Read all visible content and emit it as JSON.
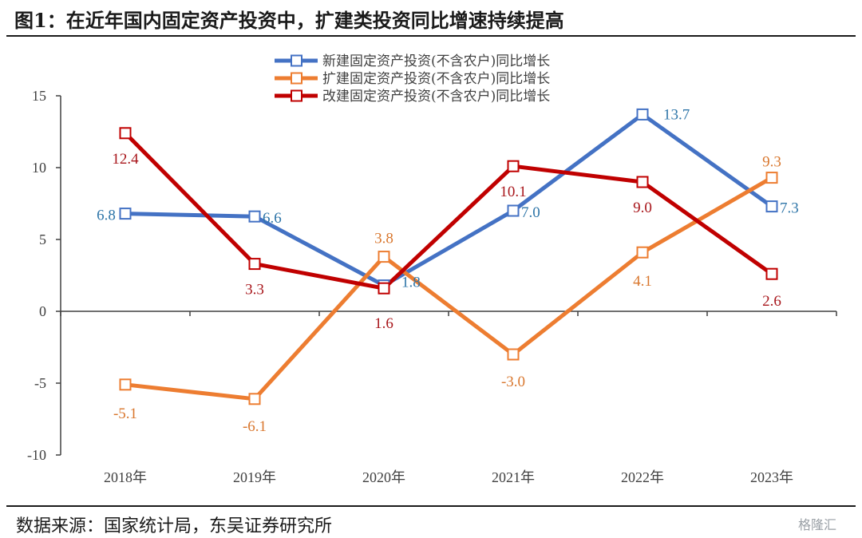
{
  "figure": {
    "title": "图1：在近年国内固定资产投资中，扩建类投资同比增速持续提高",
    "source": "数据来源：国家统计局，东吴证券研究所",
    "watermark": "格隆汇"
  },
  "chart_data": {
    "type": "line",
    "categories": [
      "2018年",
      "2019年",
      "2020年",
      "2021年",
      "2022年",
      "2023年"
    ],
    "ylim": [
      -10,
      15
    ],
    "yticks": [
      -10,
      -5,
      0,
      5,
      10,
      15
    ],
    "series": [
      {
        "name": "新建固定资产投资(不含农户)同比增长",
        "color": "#4472c4",
        "label_color": "#2e75a8",
        "values": [
          6.8,
          6.6,
          1.8,
          7.0,
          13.7,
          7.3
        ]
      },
      {
        "name": "扩建固定资产投资(不含农户)同比增长",
        "color": "#ed7d31",
        "label_color": "#d9772e",
        "values": [
          -5.1,
          -6.1,
          3.8,
          -3.0,
          4.1,
          9.3
        ]
      },
      {
        "name": "改建固定资产投资(不含农户)同比增长",
        "color": "#c00000",
        "label_color": "#a8161b",
        "values": [
          12.4,
          3.3,
          1.6,
          10.1,
          9.0,
          2.6
        ]
      }
    ],
    "legend": "top-center",
    "grid": false
  }
}
